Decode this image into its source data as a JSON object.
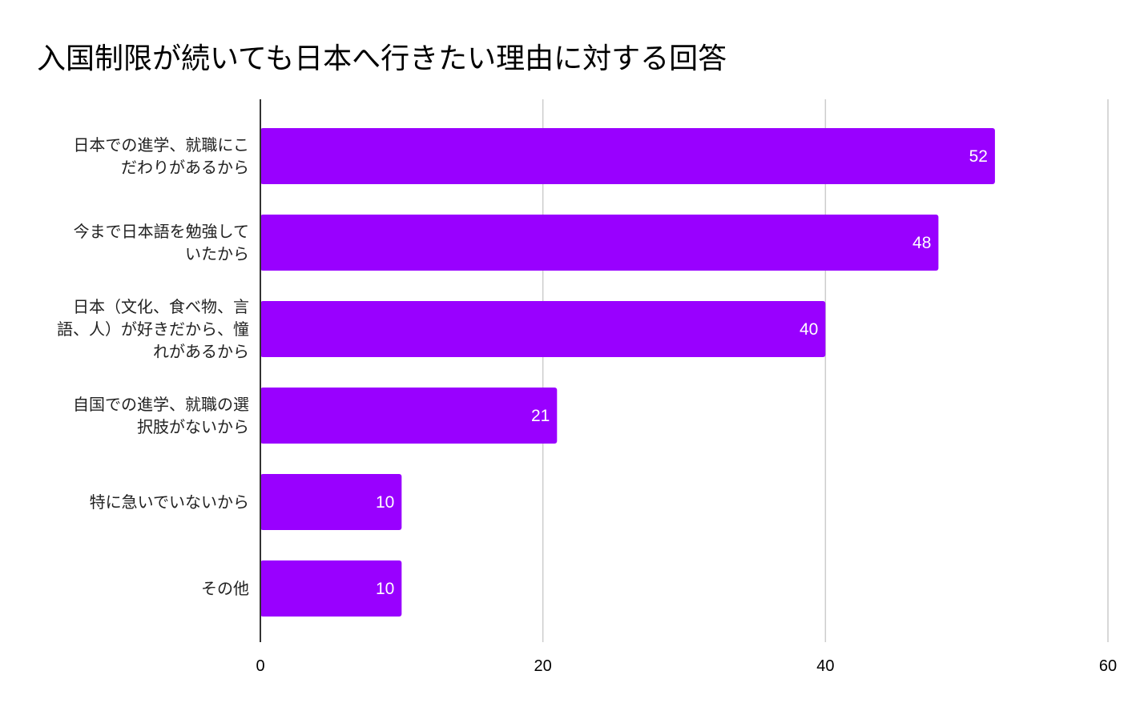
{
  "chart_data": {
    "type": "bar",
    "orientation": "horizontal",
    "title": "入国制限が続いても日本へ行きたい理由に対する回答",
    "categories": [
      [
        "日本での進学、就職にこ",
        "だわりがあるから"
      ],
      [
        "今まで日本語を勉強して",
        "いたから"
      ],
      [
        "日本（文化、食べ物、言",
        "語、人）が好きだから、憧",
        "れがあるから"
      ],
      [
        "自国での進学、就職の選",
        "択肢がないから"
      ],
      [
        "特に急いでいないから"
      ],
      [
        "その他"
      ]
    ],
    "values": [
      52,
      48,
      40,
      21,
      10,
      10
    ],
    "data_labels": [
      "52",
      "48",
      "40",
      "21",
      "10",
      "10"
    ],
    "xlim": [
      0,
      60
    ],
    "x_ticks": [
      "0",
      "20",
      "40",
      "60"
    ],
    "grid": true,
    "bar_color": "#9900ff",
    "grid_color": "#cccccc",
    "axis_color": "#333333"
  }
}
